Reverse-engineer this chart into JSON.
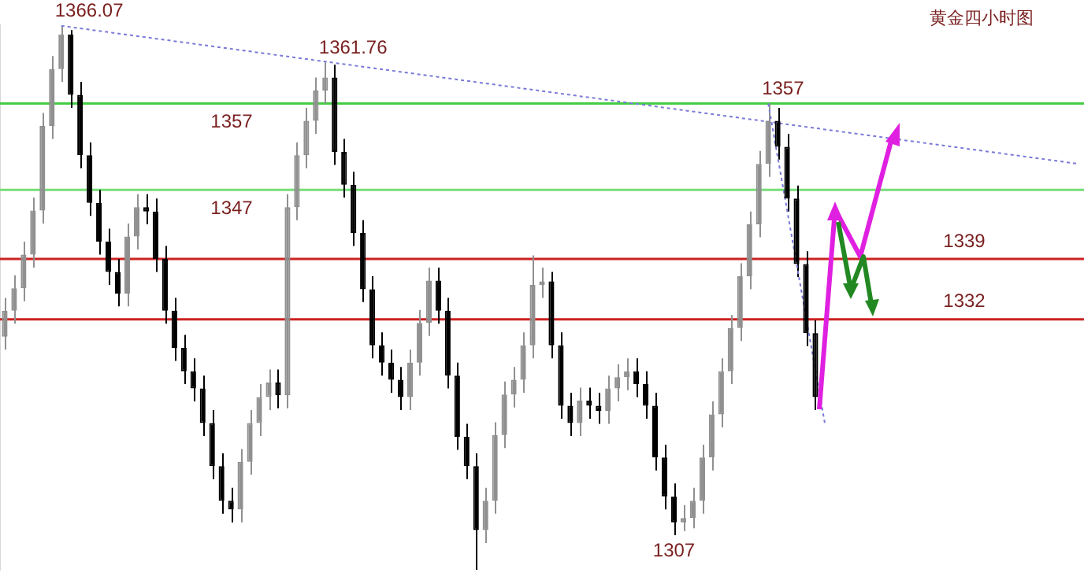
{
  "chart_data": {
    "type": "candlestick",
    "title": "黄金四小时图",
    "tick_labels": false,
    "categories": [
      null,
      null,
      null,
      null,
      null,
      null,
      null,
      null,
      null,
      null,
      null,
      null,
      null,
      null,
      null,
      null,
      null,
      null,
      null,
      null,
      null,
      null,
      null,
      null,
      null,
      null,
      null,
      null,
      null,
      null,
      null,
      null,
      null,
      null,
      null,
      null,
      null,
      null,
      null,
      null,
      null,
      null,
      null,
      null,
      null,
      null,
      null,
      null,
      null,
      null,
      null,
      null,
      null,
      null,
      null,
      null,
      null,
      null,
      null,
      null,
      null,
      null,
      null,
      null,
      null,
      null,
      null,
      null,
      null,
      null,
      null,
      null,
      null,
      null,
      null,
      null,
      null,
      null,
      null,
      null,
      null,
      null,
      null,
      null,
      null,
      null,
      null,
      null,
      null,
      null,
      null,
      null,
      null,
      null,
      null,
      null,
      null,
      null,
      null,
      null,
      null,
      null,
      null,
      null,
      null,
      null,
      null,
      null,
      null,
      null,
      null,
      null,
      null,
      null,
      null
    ],
    "ohlc": [
      [
        1330,
        1334.5,
        1328.5,
        1333
      ],
      [
        1333,
        1337.1,
        1331.5,
        1335.6
      ],
      [
        1335.6,
        1341,
        1334.1,
        1339.5
      ],
      [
        1339.5,
        1346.1,
        1338,
        1344.6
      ],
      [
        1344.6,
        1355.9,
        1343.1,
        1354.4
      ],
      [
        1354.4,
        1362.5,
        1352.9,
        1361
      ],
      [
        1361,
        1366.07,
        1359.5,
        1365
      ],
      [
        1365,
        1365.5,
        1356.5,
        1358
      ],
      [
        1358,
        1359.5,
        1349.5,
        1351
      ],
      [
        1351,
        1352.5,
        1344,
        1345.5
      ],
      [
        1345.5,
        1347,
        1339.5,
        1341
      ],
      [
        1341,
        1342.5,
        1336,
        1337.5
      ],
      [
        1337.5,
        1339,
        1333.5,
        1335
      ],
      [
        1335,
        1343.1,
        1333.5,
        1341.6
      ],
      [
        1341.6,
        1346.5,
        1340.1,
        1345
      ],
      [
        1345,
        1346.5,
        1343,
        1344.5
      ],
      [
        1344.5,
        1346,
        1337.5,
        1339
      ],
      [
        1339,
        1340.5,
        1331.5,
        1333
      ],
      [
        1333,
        1334.5,
        1327.2,
        1328.7
      ],
      [
        1328.7,
        1330.2,
        1324.5,
        1326
      ],
      [
        1326,
        1327.5,
        1322.5,
        1324
      ],
      [
        1324,
        1325.5,
        1318.5,
        1320
      ],
      [
        1320,
        1321.5,
        1313.5,
        1315
      ],
      [
        1315,
        1316.5,
        1309.5,
        1311
      ],
      [
        1311,
        1312.5,
        1308.5,
        1310
      ],
      [
        1310,
        1317,
        1308.5,
        1315.5
      ],
      [
        1315.5,
        1321.5,
        1314,
        1320
      ],
      [
        1320,
        1324.5,
        1318.5,
        1323
      ],
      [
        1323,
        1326.2,
        1321.5,
        1324.7
      ],
      [
        1324.7,
        1326.2,
        1321.7,
        1323.2
      ],
      [
        1323.2,
        1346.5,
        1321.7,
        1345
      ],
      [
        1345,
        1352.5,
        1343.5,
        1351
      ],
      [
        1351,
        1356.5,
        1349.5,
        1355
      ],
      [
        1355,
        1360,
        1353.5,
        1358.5
      ],
      [
        1358.5,
        1361.76,
        1357,
        1360
      ],
      [
        1360,
        1361.5,
        1349.9,
        1351.4
      ],
      [
        1351.4,
        1352.9,
        1346.1,
        1347.6
      ],
      [
        1347.6,
        1349.1,
        1340.5,
        1342
      ],
      [
        1342,
        1343.5,
        1334,
        1335.5
      ],
      [
        1335.5,
        1337,
        1327.5,
        1329
      ],
      [
        1329,
        1330.5,
        1325.5,
        1327
      ],
      [
        1327,
        1328.5,
        1323.5,
        1325
      ],
      [
        1325,
        1326.5,
        1321.5,
        1323
      ],
      [
        1323,
        1328.5,
        1321.5,
        1327
      ],
      [
        1327,
        1333.1,
        1325.5,
        1331.6
      ],
      [
        1331.6,
        1338,
        1330.1,
        1336.5
      ],
      [
        1336.5,
        1338,
        1331.5,
        1333
      ],
      [
        1333,
        1334.5,
        1324,
        1325.5
      ],
      [
        1325.5,
        1327,
        1316.9,
        1318.4
      ],
      [
        1318.4,
        1319.9,
        1313.5,
        1315
      ],
      [
        1315,
        1316.5,
        1303,
        1307.6
      ],
      [
        1307.6,
        1312.5,
        1306.1,
        1311
      ],
      [
        1311,
        1320.1,
        1309.5,
        1318.6
      ],
      [
        1318.6,
        1324.8,
        1317.1,
        1323.3
      ],
      [
        1323.3,
        1326.5,
        1321.8,
        1325
      ],
      [
        1325,
        1330.5,
        1323.5,
        1329
      ],
      [
        1329,
        1339.4,
        1327.5,
        1336
      ],
      [
        1336,
        1338,
        1334.5,
        1336.4
      ],
      [
        1336.4,
        1337.5,
        1327.5,
        1329
      ],
      [
        1329,
        1330.5,
        1320.5,
        1322
      ],
      [
        1322,
        1323.5,
        1318.5,
        1320
      ],
      [
        1320,
        1324.1,
        1318.5,
        1322.6
      ],
      [
        1322.6,
        1324.1,
        1320.5,
        1322
      ],
      [
        1322,
        1323.5,
        1319.9,
        1321.4
      ],
      [
        1321.4,
        1325.5,
        1319.9,
        1324
      ],
      [
        1324,
        1326.8,
        1322.5,
        1325.3
      ],
      [
        1325.3,
        1327.5,
        1323.8,
        1326
      ],
      [
        1326,
        1327.5,
        1323,
        1324.5
      ],
      [
        1324.5,
        1326,
        1320.5,
        1322
      ],
      [
        1322,
        1323.5,
        1314.5,
        1316
      ],
      [
        1316,
        1317.5,
        1310,
        1311.5
      ],
      [
        1311.5,
        1313,
        1307,
        1308.5
      ],
      [
        1308.5,
        1310.5,
        1307.5,
        1309
      ],
      [
        1309,
        1312.5,
        1307.8,
        1311
      ],
      [
        1311,
        1317.5,
        1309.5,
        1316
      ],
      [
        1316,
        1322.5,
        1314.5,
        1321
      ],
      [
        1321,
        1327.5,
        1319.5,
        1326
      ],
      [
        1326,
        1332.5,
        1324.5,
        1331
      ],
      [
        1331,
        1338.5,
        1329.5,
        1337
      ],
      [
        1337,
        1344.5,
        1335.5,
        1343
      ],
      [
        1343,
        1351.5,
        1341.5,
        1350
      ],
      [
        1350,
        1357,
        1348.5,
        1355
      ],
      [
        1355,
        1356.5,
        1350.5,
        1352
      ],
      [
        1352,
        1353.5,
        1344.5,
        1346
      ],
      [
        1346,
        1347.5,
        1336.9,
        1338.4
      ],
      [
        1338.4,
        1339.9,
        1328.9,
        1330.4
      ],
      [
        1330.4,
        1331.9,
        1321.5,
        1323
      ],
      null,
      null,
      null,
      null,
      null,
      null,
      null,
      null,
      null,
      null,
      null,
      null,
      null,
      null,
      null,
      null,
      null,
      null,
      null,
      null,
      null,
      null,
      null,
      null,
      null,
      null,
      null,
      null
    ],
    "series": [
      {
        "type": "line",
        "color": "#7a7ad8",
        "line_style": "dotted",
        "values": [
          null,
          null,
          null,
          null,
          null,
          null,
          1366,
          null,
          null,
          null,
          null,
          null,
          null,
          null,
          null,
          null,
          null,
          null,
          null,
          null,
          null,
          null,
          null,
          null,
          null,
          null,
          null,
          null,
          null,
          null,
          null,
          null,
          null,
          null,
          null,
          null,
          null,
          null,
          null,
          null,
          null,
          null,
          null,
          null,
          null,
          null,
          null,
          null,
          null,
          null,
          null,
          null,
          null,
          null,
          null,
          null,
          null,
          null,
          null,
          null,
          null,
          null,
          null,
          null,
          null,
          null,
          null,
          null,
          null,
          null,
          null,
          null,
          null,
          null,
          null,
          null,
          null,
          null,
          null,
          null,
          null,
          null,
          null,
          null,
          null,
          null,
          null,
          null,
          null,
          null,
          null,
          null,
          null,
          null,
          null,
          null,
          null,
          null,
          null,
          null,
          null,
          null,
          null,
          null,
          null,
          null,
          null,
          null,
          null,
          null,
          null,
          null,
          null,
          null,
          1350
        ]
      },
      {
        "type": "line",
        "color": "#7a7ad8",
        "line_style": "dotted",
        "values": [
          null,
          null,
          null,
          null,
          null,
          null,
          null,
          null,
          null,
          null,
          null,
          null,
          null,
          null,
          null,
          null,
          null,
          null,
          null,
          null,
          null,
          null,
          null,
          null,
          null,
          null,
          null,
          null,
          null,
          null,
          null,
          null,
          null,
          null,
          null,
          null,
          null,
          null,
          null,
          null,
          null,
          null,
          null,
          null,
          null,
          null,
          null,
          null,
          null,
          null,
          null,
          null,
          null,
          null,
          null,
          null,
          null,
          null,
          null,
          null,
          null,
          null,
          null,
          null,
          null,
          null,
          null,
          null,
          null,
          null,
          null,
          null,
          null,
          null,
          null,
          null,
          null,
          null,
          null,
          null,
          null,
          1357,
          null,
          null,
          null,
          null,
          null,
          1320,
          null,
          null,
          null,
          null,
          null,
          null,
          null,
          null,
          null,
          null,
          null,
          null,
          null,
          null,
          null,
          null,
          null,
          null,
          null,
          null,
          null,
          null,
          null,
          null,
          null,
          null,
          null
        ]
      }
    ],
    "ylim": [
      1303,
      1366.07
    ],
    "ref_lines": [
      {
        "axis": "y",
        "value": 1357,
        "label": "1357",
        "color": "#44cc44"
      },
      {
        "axis": "y",
        "value": 1347,
        "label": "1347",
        "color": "#77dd77"
      },
      {
        "axis": "y",
        "value": 1339,
        "label": "1339",
        "color": "#cc2222"
      },
      {
        "axis": "y",
        "value": 1332,
        "label": "1332",
        "color": "#cc2222"
      }
    ],
    "annotations": [
      {
        "text": "1366.07",
        "y": 1366.07
      },
      {
        "text": "1361.76",
        "y": 1361.76
      },
      {
        "text": "1357",
        "y": 1357
      },
      {
        "text": "1307",
        "y": 1307
      }
    ]
  }
}
